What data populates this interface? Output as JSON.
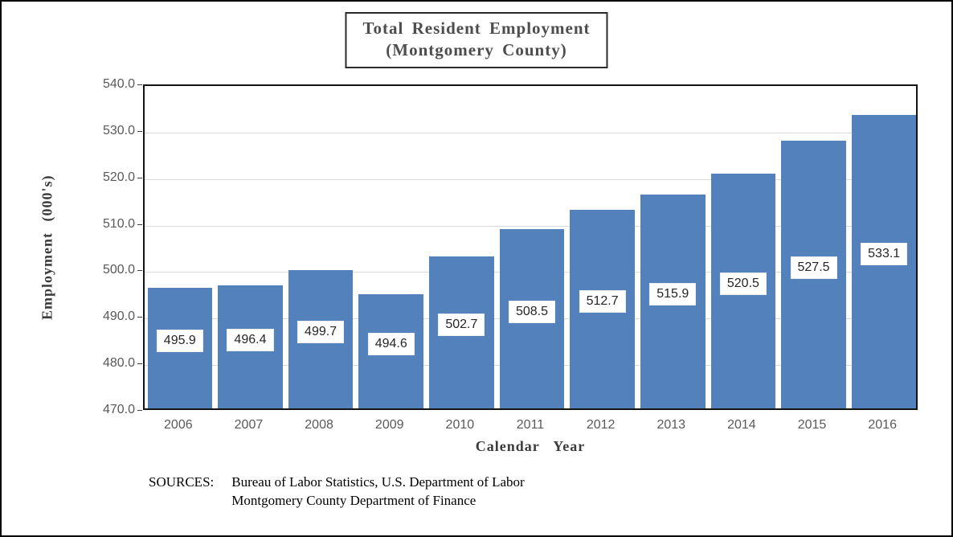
{
  "chart_data": {
    "type": "bar",
    "title": "Total Resident Employment",
    "subtitle": "(Montgomery County)",
    "categories": [
      "2006",
      "2007",
      "2008",
      "2009",
      "2010",
      "2011",
      "2012",
      "2013",
      "2014",
      "2015",
      "2016"
    ],
    "values": [
      495.9,
      496.4,
      499.7,
      494.6,
      502.7,
      508.5,
      512.7,
      515.9,
      520.5,
      527.5,
      533.1
    ],
    "data_label_values": [
      "495.9",
      "496.4",
      "499.7",
      "494.6",
      "502.7",
      "508.5",
      "512.7",
      "515.9",
      "520.5",
      "527.5",
      "533.1"
    ],
    "xlabel": "Calendar  Year",
    "ylabel": "Employment  (000's)",
    "ylim": [
      470.0,
      540.0
    ],
    "ytick_step": 10,
    "ytick_labels": [
      "540.0",
      "530.0",
      "520.0",
      "510.0",
      "500.0",
      "490.0",
      "480.0",
      "470.0"
    ],
    "grid": true,
    "legend": "none",
    "bar_color": "#5281BC",
    "gridline_color": "#d9d9d9",
    "plot_border_color": "#141414",
    "tick_text_color": "#595959",
    "sources_label": "SOURCES:",
    "sources": [
      "Bureau of Labor Statistics, U.S. Department of Labor",
      "Montgomery County Department of Finance"
    ]
  }
}
